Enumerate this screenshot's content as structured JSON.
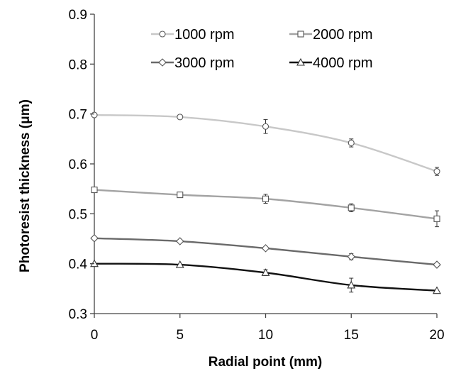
{
  "chart_data": {
    "type": "line",
    "title": "",
    "xlabel": "Radial point (mm)",
    "ylabel": "Photoresist thickness (μm)",
    "xlim": [
      0,
      20
    ],
    "ylim": [
      0.3,
      0.9
    ],
    "x_ticks": [
      "0",
      "5",
      "10",
      "15",
      "20"
    ],
    "y_ticks": [
      "0.3",
      "0.4",
      "0.5",
      "0.6",
      "0.7",
      "0.8",
      "0.9"
    ],
    "x": [
      0,
      5,
      10,
      15,
      20
    ],
    "grid": false,
    "legend_position": "top",
    "series": [
      {
        "name": "1000 rpm",
        "marker": "circle",
        "color": "#c8c8c8",
        "values": [
          0.698,
          0.694,
          0.675,
          0.642,
          0.585
        ],
        "errors": [
          0.0,
          0.0,
          0.014,
          0.008,
          0.008
        ]
      },
      {
        "name": "2000 rpm",
        "marker": "square",
        "color": "#a3a3a3",
        "values": [
          0.548,
          0.538,
          0.53,
          0.512,
          0.49
        ],
        "errors": [
          0.005,
          0.0,
          0.009,
          0.008,
          0.016
        ]
      },
      {
        "name": "3000 rpm",
        "marker": "diamond",
        "color": "#6a6a6a",
        "values": [
          0.451,
          0.445,
          0.431,
          0.414,
          0.398
        ],
        "errors": [
          0.0,
          0.0,
          0.0,
          0.006,
          0.0
        ]
      },
      {
        "name": "4000 rpm",
        "marker": "triangle",
        "color": "#111111",
        "values": [
          0.4,
          0.398,
          0.382,
          0.357,
          0.346
        ],
        "errors": [
          0.0,
          0.0,
          0.006,
          0.014,
          0.0
        ]
      }
    ]
  }
}
